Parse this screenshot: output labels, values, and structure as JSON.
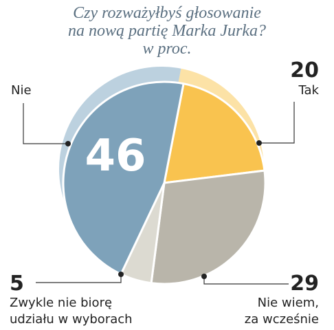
{
  "title_lines": [
    "Czy rozważyłbyś głosowanie",
    "na nową partię Marka Jurka?",
    "w proc."
  ],
  "chart_data": {
    "type": "pie",
    "title": "Czy rozważyłbyś głosowanie na nową partię Marka Jurka? w proc.",
    "slices": [
      {
        "key": "tak",
        "label": [
          "Tak"
        ],
        "value": 20,
        "color": "#f9c34f",
        "shadow": "#fce2a6"
      },
      {
        "key": "nie_wiem",
        "label": [
          "Nie wiem,",
          "za wcześnie"
        ],
        "value": 29,
        "color": "#b9b5aa",
        "shadow": "#dcd9d2"
      },
      {
        "key": "zwykle",
        "label": [
          "Zwykle nie biorę",
          "udziału w wyborach"
        ],
        "value": 5,
        "color": "#dcdad1",
        "shadow": "#eeede7"
      },
      {
        "key": "nie",
        "label": [
          "Nie"
        ],
        "value": 46,
        "color": "#7ea2ba",
        "shadow": "#bcd1df"
      }
    ],
    "big_label": "46"
  }
}
